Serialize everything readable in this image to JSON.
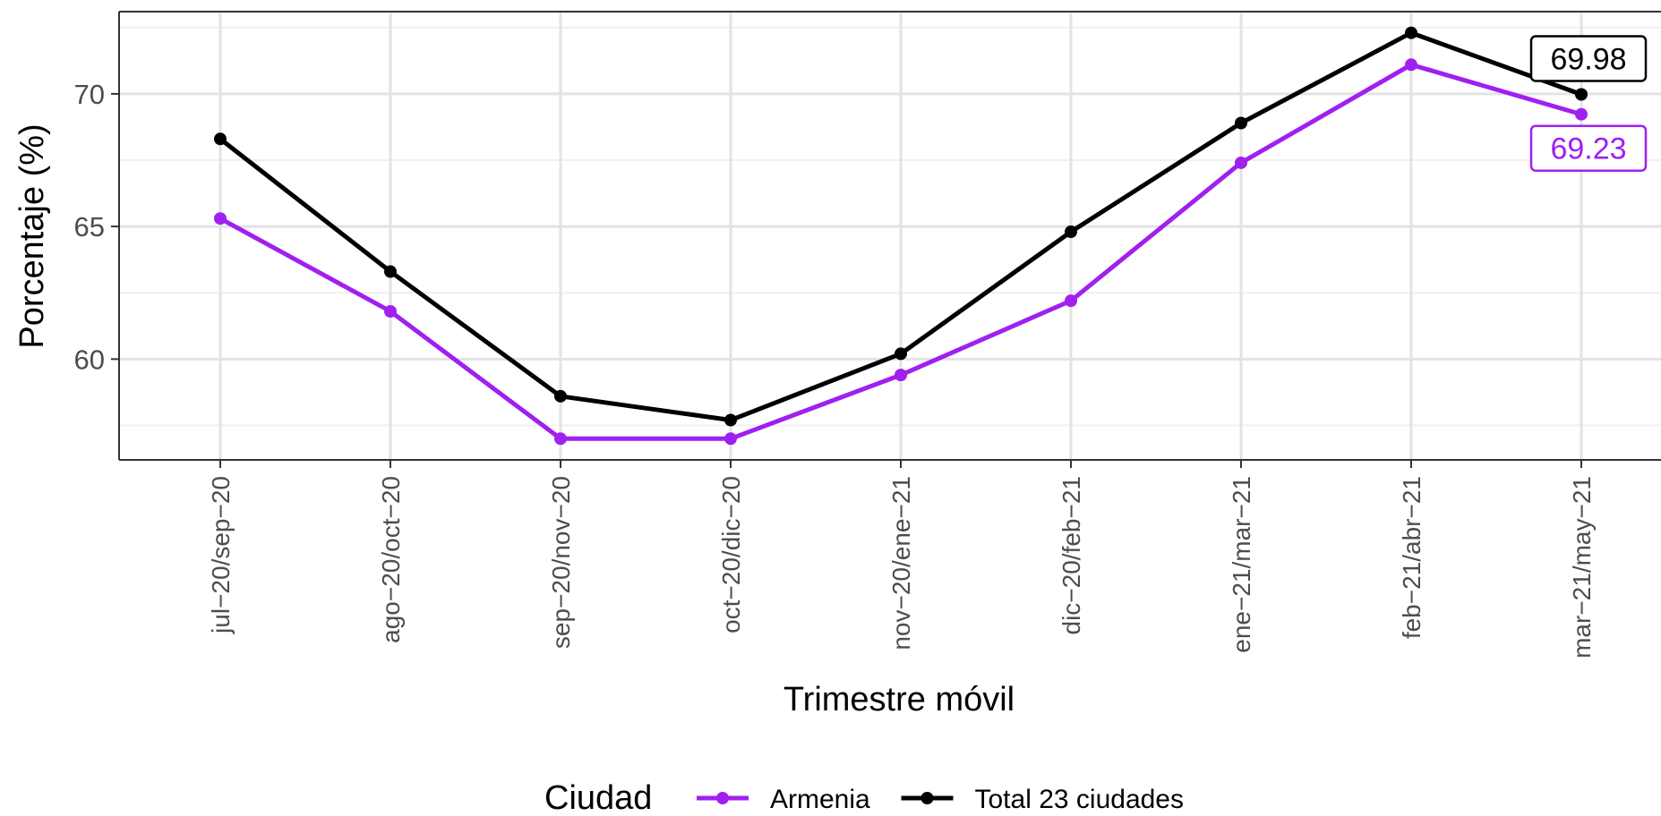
{
  "chart_data": {
    "type": "line",
    "categories": [
      "jul−20/sep−20",
      "ago−20/oct−20",
      "sep−20/nov−20",
      "oct−20/dic−20",
      "nov−20/ene−21",
      "dic−20/feb−21",
      "ene−21/mar−21",
      "feb−21/abr−21",
      "mar−21/may−21"
    ],
    "series": [
      {
        "name": "Armenia",
        "color": "#a020f0",
        "values": [
          65.3,
          61.8,
          57.0,
          57.0,
          59.4,
          62.2,
          67.4,
          71.1,
          69.23
        ]
      },
      {
        "name": "Total 23 ciudades",
        "color": "#000000",
        "values": [
          68.3,
          63.3,
          58.6,
          57.7,
          60.2,
          64.8,
          68.9,
          72.3,
          69.98
        ]
      }
    ],
    "annotations": [
      {
        "series": "Total 23 ciudades",
        "category": "mar−21/may−21",
        "text": "69.98"
      },
      {
        "series": "Armenia",
        "category": "mar−21/may−21",
        "text": "69.23"
      }
    ],
    "xlabel": "Trimestre móvil",
    "ylabel": "Porcentaje (%)",
    "yticks": [
      60,
      65,
      70
    ],
    "ylim": [
      56.2,
      73.1
    ],
    "grid": true,
    "legend_title": "Ciudad",
    "legend_position": "bottom"
  }
}
